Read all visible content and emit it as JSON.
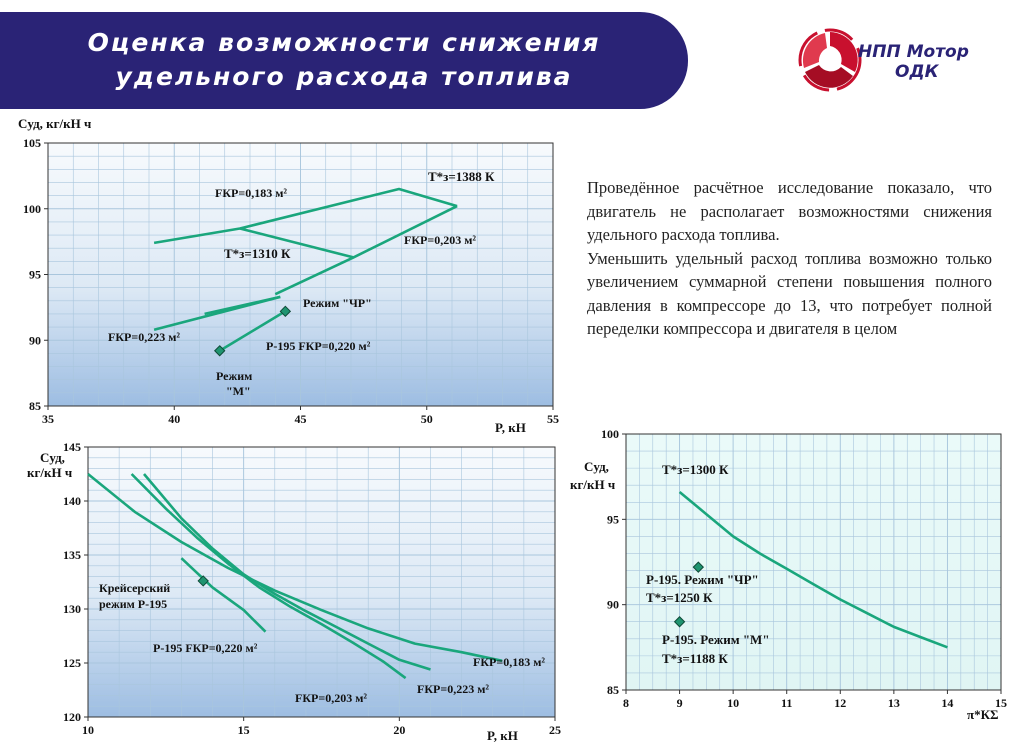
{
  "header": {
    "title_line1": "Оценка возможности снижения",
    "title_line2": "удельного расхода топлива"
  },
  "logo": {
    "line1": "НПП Мотор",
    "line2": "ОДК"
  },
  "conclusion": {
    "paragraph1": "Проведённое расчётное исследование показало, что двигатель не располагает возможностями снижения удельного расхода топлива.",
    "paragraph2": "Уменьшить удельный расход топлива возможно только увеличением суммарной степени повышения полного давления в компрессоре до 13, что потребует полной переделки компрессора и двигателя в целом"
  },
  "colors": {
    "banner": "#2a2376",
    "line": "#1aa67c",
    "marker": "#1f9470",
    "logo_red": "#c8102e",
    "grid": "#a9c6dd"
  },
  "chart_data": [
    {
      "type": "line",
      "title": "",
      "xlabel": "P, кН",
      "ylabel": "Cуд, кг/кН ч",
      "xlim": [
        35,
        55
      ],
      "ylim": [
        85,
        105
      ],
      "xticks": [
        35,
        40,
        45,
        50,
        55
      ],
      "yticks": [
        85,
        90,
        95,
        100,
        105
      ],
      "grid": true,
      "series": [
        {
          "name": "FКР=0,183 м²",
          "x": [
            39.2,
            42.6,
            48.9,
            51.2
          ],
          "y": [
            97.4,
            98.5,
            101.5,
            100.2
          ]
        },
        {
          "name": "FКР=0,203 м²",
          "x": [
            44.0,
            47.1,
            51.2
          ],
          "y": [
            93.5,
            96.3,
            100.2
          ]
        },
        {
          "name": "FКР=0,223 м²",
          "x": [
            39.2,
            44.2
          ],
          "y": [
            90.8,
            93.3
          ]
        },
        {
          "name": "",
          "x": [
            41.2,
            44.2
          ],
          "y": [
            92.0,
            93.3
          ]
        },
        {
          "name": "",
          "x": [
            42.6,
            47.1
          ],
          "y": [
            98.5,
            96.3
          ]
        },
        {
          "name": "",
          "x": [
            41.8,
            44.4
          ],
          "y": [
            89.2,
            92.2
          ]
        }
      ],
      "points": [
        {
          "label": "Режим \"ЧР\"",
          "x": 44.4,
          "y": 92.2
        },
        {
          "label": "Режим \"М\"",
          "x": 41.8,
          "y": 89.2
        }
      ],
      "annotations": [
        "T*з=1388 К",
        "T*з=1310 К",
        "P-195 FКР=0,220 м²"
      ]
    },
    {
      "type": "line",
      "title": "",
      "xlabel": "P, кН",
      "ylabel": "Cуд, кг/кН ч",
      "xlim": [
        10,
        25
      ],
      "ylim": [
        120,
        145
      ],
      "xticks": [
        10,
        15,
        20,
        25
      ],
      "yticks": [
        120,
        125,
        130,
        135,
        140,
        145
      ],
      "grid": true,
      "series": [
        {
          "name": "FКР=0,183 м²",
          "x": [
            10.0,
            11.5,
            13.0,
            14.5,
            16.0,
            17.5,
            19.0,
            20.5,
            22.0,
            23.3
          ],
          "y": [
            142.5,
            139.0,
            136.2,
            133.8,
            131.7,
            129.9,
            128.2,
            126.8,
            126.0,
            125.2
          ]
        },
        {
          "name": "FКР=0,203 м²",
          "x": [
            11.4,
            12.5,
            13.5,
            14.5,
            15.5,
            16.5,
            17.5,
            18.5,
            19.5,
            20.2
          ],
          "y": [
            142.5,
            139.3,
            136.6,
            134.2,
            132.0,
            130.2,
            128.6,
            126.9,
            125.1,
            123.6
          ]
        },
        {
          "name": "FКР=0,223 м²",
          "x": [
            11.8,
            13.0,
            14.0,
            15.0,
            16.0,
            17.0,
            18.0,
            19.0,
            20.0,
            21.0
          ],
          "y": [
            142.5,
            138.4,
            135.6,
            133.2,
            131.4,
            129.8,
            128.3,
            126.8,
            125.3,
            124.4
          ]
        },
        {
          "name": "P-195 FКР=0,220 м²",
          "x": [
            13.0,
            14.0,
            15.0,
            15.7
          ],
          "y": [
            134.7,
            132.0,
            129.9,
            127.9
          ]
        }
      ],
      "points": [
        {
          "label": "Крейсерский режим  P-195",
          "x": 13.7,
          "y": 132.6
        }
      ],
      "annotations": []
    },
    {
      "type": "line",
      "title": "",
      "xlabel": "π*КΣ",
      "ylabel": "Cуд, кг/кН ч",
      "xlim": [
        8,
        15
      ],
      "ylim": [
        85,
        100
      ],
      "xticks": [
        8,
        9,
        10,
        11,
        12,
        13,
        14,
        15
      ],
      "yticks": [
        85,
        90,
        95,
        100
      ],
      "grid": true,
      "series": [
        {
          "name": "T*з=1300 К",
          "x": [
            9.0,
            9.5,
            10.0,
            10.5,
            11.0,
            11.5,
            12.0,
            12.5,
            13.0,
            13.5,
            14.0
          ],
          "y": [
            96.6,
            95.3,
            94.0,
            93.0,
            92.1,
            91.2,
            90.3,
            89.5,
            88.7,
            88.1,
            87.5
          ]
        }
      ],
      "points": [
        {
          "label": "P-195. Режим \"ЧР\"",
          "x": 9.35,
          "y": 92.2
        },
        {
          "label": "P-195. Режим \"М\"",
          "x": 9.0,
          "y": 89.0
        }
      ],
      "annotations": [
        "T*з=1250 К",
        "T*з=1188 К"
      ]
    }
  ]
}
